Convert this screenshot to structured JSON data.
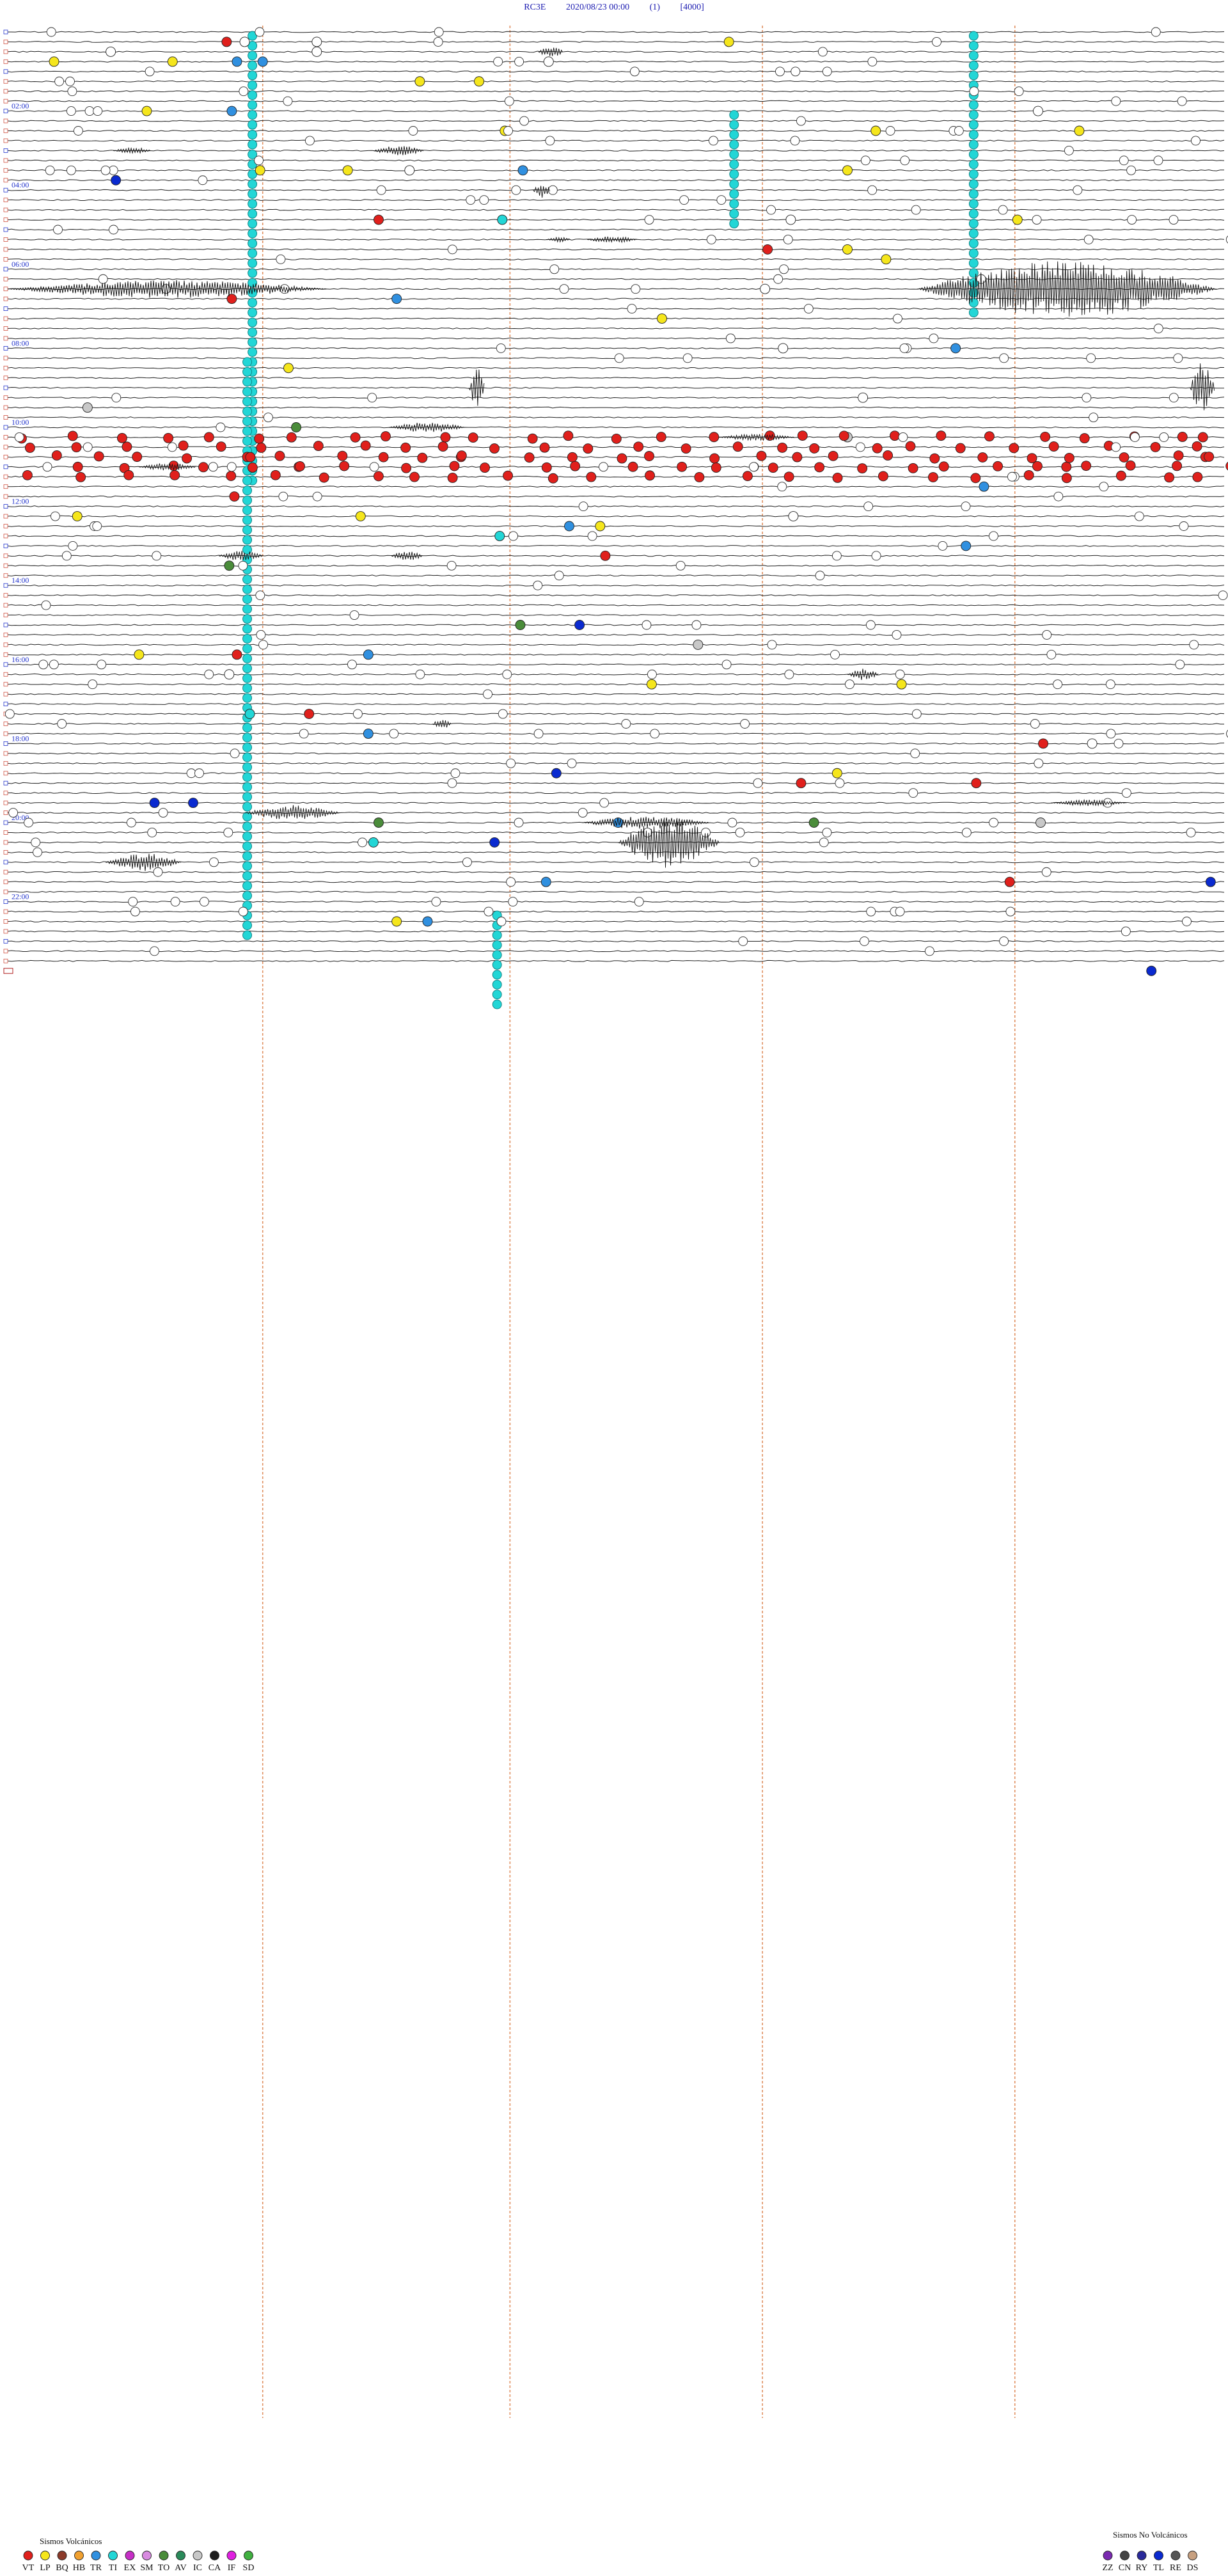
{
  "header": {
    "station": "RC3E",
    "datetime": "2020/08/23 00:00",
    "channel": "(1)",
    "scale": "[4000]"
  },
  "chart_data": {
    "type": "helicorder",
    "rows_total": 96,
    "minutes_per_row": 15,
    "hour_labels": [
      "02:00",
      "04:00",
      "06:00",
      "08:00",
      "10:00",
      "12:00",
      "14:00",
      "16:00",
      "18:00",
      "20:00",
      "22:00"
    ],
    "colors": {
      "trace": "#222222",
      "minute_marker": "#e09060",
      "hour_label": "#2233cc",
      "VT": "#e0201c",
      "LP": "#f5e61c",
      "BQ": "#8b3a2a",
      "HB": "#f0a030",
      "TR": "#3090e0",
      "TI": "#22d6d6",
      "EX": "#c62fc6",
      "SM": "#d88be0",
      "TO": "#4a8c3a",
      "AV": "#2a8a5a",
      "IC": "#c8c8c8",
      "CA": "#1e1e1e",
      "IF": "#e020e0",
      "SD": "#40b040",
      "ZZ": "#7a2ab0",
      "CN": "#444444",
      "RY": "#2a2a9a",
      "TL": "#0a2ad0",
      "RE": "#555555",
      "DS": "#c7a080",
      "unclassified": "#ffffff"
    },
    "events": [
      {
        "row": 1,
        "minute": 8.5,
        "type": "VT"
      },
      {
        "row": 1,
        "minute": 9.2,
        "type": "unclassified"
      },
      {
        "row": 1,
        "minute": 12,
        "type": "unclassified"
      },
      {
        "row": 2,
        "minute": 4,
        "type": "unclassified"
      },
      {
        "row": 2,
        "minute": 12,
        "type": "unclassified"
      },
      {
        "row": 3,
        "minute": 1.8,
        "type": "LP"
      },
      {
        "row": 3,
        "minute": 6.4,
        "type": "LP"
      },
      {
        "row": 3,
        "minute": 8.9,
        "type": "TR"
      },
      {
        "row": 3,
        "minute": 21,
        "type": "unclassified"
      },
      {
        "row": 3,
        "minute": 9.9,
        "type": "TR"
      },
      {
        "row": 5,
        "minute": 16,
        "type": "LP"
      },
      {
        "row": 5,
        "minute": 18.3,
        "type": "LP"
      },
      {
        "row": 1,
        "minute": 28,
        "type": "LP"
      },
      {
        "row": 8,
        "minute": 5.4,
        "type": "LP"
      },
      {
        "row": 8,
        "minute": 8.7,
        "type": "TR"
      },
      {
        "row": 8,
        "minute": 40,
        "type": "unclassified"
      },
      {
        "row": 10,
        "minute": 19.3,
        "type": "LP"
      },
      {
        "row": 10,
        "minute": 33.7,
        "type": "LP"
      },
      {
        "row": 10,
        "minute": 41.6,
        "type": "LP"
      },
      {
        "row": 14,
        "minute": 15.6,
        "type": "unclassified"
      },
      {
        "row": 14,
        "minute": 20,
        "type": "TR"
      },
      {
        "row": 14,
        "minute": 13.2,
        "type": "LP"
      },
      {
        "row": 14,
        "minute": 32.6,
        "type": "LP"
      },
      {
        "row": 14,
        "minute": 9.8,
        "type": "LP"
      },
      {
        "row": 15,
        "minute": 4.2,
        "type": "TL"
      },
      {
        "row": 19,
        "minute": 14.4,
        "type": "VT"
      },
      {
        "row": 19,
        "minute": 19.2,
        "type": "TI"
      },
      {
        "row": 19,
        "minute": 30.4,
        "type": "unclassified"
      },
      {
        "row": 19,
        "minute": 39.2,
        "type": "LP"
      },
      {
        "row": 22,
        "minute": 29.5,
        "type": "VT"
      },
      {
        "row": 22,
        "minute": 32.6,
        "type": "LP"
      },
      {
        "row": 23,
        "minute": 34.1,
        "type": "LP"
      },
      {
        "row": 26,
        "minute": 29.4,
        "type": "unclassified"
      },
      {
        "row": 27,
        "minute": 8.7,
        "type": "VT"
      },
      {
        "row": 27,
        "minute": 15.1,
        "type": "TR"
      },
      {
        "row": 29,
        "minute": 25.4,
        "type": "LP"
      },
      {
        "row": 32,
        "minute": 30.1,
        "type": "unclassified"
      },
      {
        "row": 32,
        "minute": 36.8,
        "type": "TR"
      },
      {
        "row": 34,
        "minute": 10.9,
        "type": "LP"
      },
      {
        "row": 37,
        "minute": 33.2,
        "type": "unclassified"
      },
      {
        "row": 38,
        "minute": 3.1,
        "type": "IC"
      },
      {
        "row": 40,
        "minute": 11.2,
        "type": "TO"
      },
      {
        "row": 43,
        "minute": 9.3,
        "type": "VT"
      },
      {
        "row": 43,
        "minute": 17.6,
        "type": "VT"
      },
      {
        "row": 43,
        "minute": 46.5,
        "type": "VT"
      },
      {
        "row": 41,
        "minute": 46.4,
        "type": "VT"
      },
      {
        "row": 41,
        "minute": 32.6,
        "type": "IC"
      },
      {
        "row": 44,
        "minute": 11.3,
        "type": "VT"
      },
      {
        "row": 44,
        "minute": 41.1,
        "type": "VT"
      },
      {
        "row": 46,
        "minute": 37.9,
        "type": "TR"
      },
      {
        "row": 47,
        "minute": 8.8,
        "type": "VT"
      },
      {
        "row": 49,
        "minute": 2.7,
        "type": "LP"
      },
      {
        "row": 49,
        "minute": 13.7,
        "type": "LP"
      },
      {
        "row": 49,
        "minute": 30.5,
        "type": "unclassified"
      },
      {
        "row": 50,
        "minute": 21.8,
        "type": "TR"
      },
      {
        "row": 50,
        "minute": 23,
        "type": "LP"
      },
      {
        "row": 51,
        "minute": 19.1,
        "type": "TI"
      },
      {
        "row": 52,
        "minute": 37.2,
        "type": "TR"
      },
      {
        "row": 53,
        "minute": 23.2,
        "type": "VT"
      },
      {
        "row": 54,
        "minute": 8.6,
        "type": "TO"
      },
      {
        "row": 60,
        "minute": 22.2,
        "type": "TL"
      },
      {
        "row": 60,
        "minute": 19.9,
        "type": "TO"
      },
      {
        "row": 62,
        "minute": 26.8,
        "type": "IC"
      },
      {
        "row": 63,
        "minute": 8.9,
        "type": "VT"
      },
      {
        "row": 63,
        "minute": 5.1,
        "type": "LP"
      },
      {
        "row": 63,
        "minute": 14,
        "type": "TR"
      },
      {
        "row": 65,
        "minute": 8.6,
        "type": "unclassified"
      },
      {
        "row": 66,
        "minute": 25,
        "type": "LP"
      },
      {
        "row": 66,
        "minute": 34.7,
        "type": "LP"
      },
      {
        "row": 69,
        "minute": 9.4,
        "type": "TI"
      },
      {
        "row": 69,
        "minute": 11.7,
        "type": "VT"
      },
      {
        "row": 71,
        "minute": 14,
        "type": "TR"
      },
      {
        "row": 71,
        "minute": 47.5,
        "type": "unclassified"
      },
      {
        "row": 72,
        "minute": 40.2,
        "type": "VT"
      },
      {
        "row": 72,
        "minute": 42.1,
        "type": "unclassified"
      },
      {
        "row": 75,
        "minute": 32.2,
        "type": "LP"
      },
      {
        "row": 75,
        "minute": 21.3,
        "type": "TL"
      },
      {
        "row": 76,
        "minute": 30.8,
        "type": "VT"
      },
      {
        "row": 76,
        "minute": 37.6,
        "type": "VT"
      },
      {
        "row": 78,
        "minute": 5.7,
        "type": "TL"
      },
      {
        "row": 78,
        "minute": 7.2,
        "type": "TL"
      },
      {
        "row": 80,
        "minute": 14.4,
        "type": "TO"
      },
      {
        "row": 80,
        "minute": 23.7,
        "type": "TR"
      },
      {
        "row": 80,
        "minute": 31.3,
        "type": "TO"
      },
      {
        "row": 80,
        "minute": 40.1,
        "type": "IC"
      },
      {
        "row": 82,
        "minute": 14.2,
        "type": "TI"
      },
      {
        "row": 82,
        "minute": 18.9,
        "type": "TL"
      },
      {
        "row": 86,
        "minute": 20.9,
        "type": "TR"
      },
      {
        "row": 86,
        "minute": 46.7,
        "type": "TL"
      },
      {
        "row": 86,
        "minute": 38.9,
        "type": "VT"
      },
      {
        "row": 90,
        "minute": 15.1,
        "type": "LP"
      },
      {
        "row": 90,
        "minute": 16.3,
        "type": "TR"
      },
      {
        "row": 95,
        "minute": 44.4,
        "type": "TL"
      }
    ],
    "ti_columns": [
      {
        "x_minute": 9.5,
        "rows": [
          0,
          45
        ],
        "step_every": 1
      },
      {
        "x_minute": 37.5,
        "rows": [
          0,
          28
        ],
        "step_every": 1
      },
      {
        "x_minute": 28.2,
        "rows": [
          8,
          19
        ],
        "step_every": 1
      },
      {
        "x_minute": 9.3,
        "rows": [
          33,
          91
        ],
        "step_every": 1
      },
      {
        "x_minute": 19,
        "rows": [
          89,
          98
        ],
        "step_every": 1
      }
    ],
    "legend": {
      "volcanic_title": "Sismos Volcánicos",
      "volcanic_codes": [
        "VT",
        "LP",
        "BQ",
        "HB",
        "TR",
        "TI",
        "EX",
        "SM",
        "TO",
        "AV",
        "IC",
        "CA",
        "IF",
        "SD"
      ],
      "nonvolcanic_title": "Sismos No Volcánicos",
      "nonvolcanic_codes": [
        "ZZ",
        "CN",
        "RY",
        "TL",
        "RE",
        "DS"
      ]
    }
  }
}
